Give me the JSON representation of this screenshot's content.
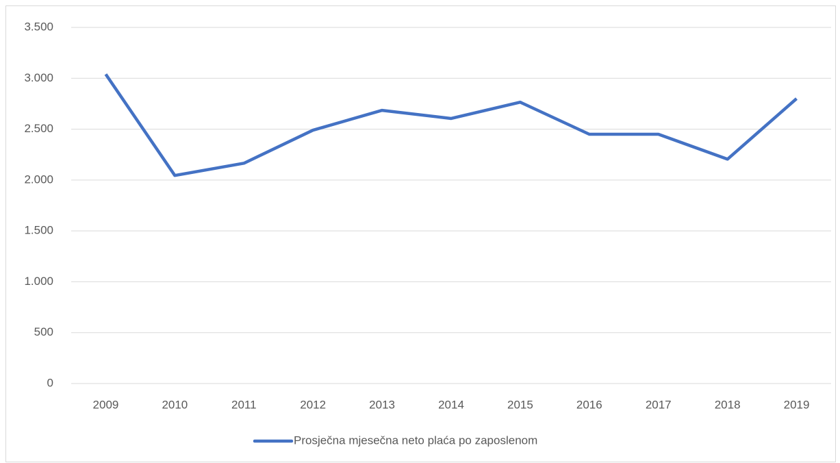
{
  "chart_data": {
    "type": "line",
    "categories": [
      "2009",
      "2010",
      "2011",
      "2012",
      "2013",
      "2014",
      "2015",
      "2016",
      "2017",
      "2018",
      "2019"
    ],
    "series": [
      {
        "name": "Prosječna mjesečna neto plaća po zaposlenom",
        "color": "#4472c4",
        "values": [
          3040,
          2045,
          2165,
          2490,
          2685,
          2605,
          2765,
          2450,
          2450,
          2205,
          2800
        ]
      }
    ],
    "ylim": [
      0,
      3500
    ],
    "yticks": [
      0,
      500,
      {
        "value": 1000,
        "label": "1.000"
      },
      {
        "value": 1500,
        "label": "1.500"
      },
      {
        "value": 2000,
        "label": "2.000"
      },
      {
        "value": 2500,
        "label": "2.500"
      },
      {
        "value": 3000,
        "label": "3.000"
      },
      {
        "value": 3500,
        "label": "3.500"
      }
    ],
    "grid": true,
    "legend": "bottom"
  }
}
